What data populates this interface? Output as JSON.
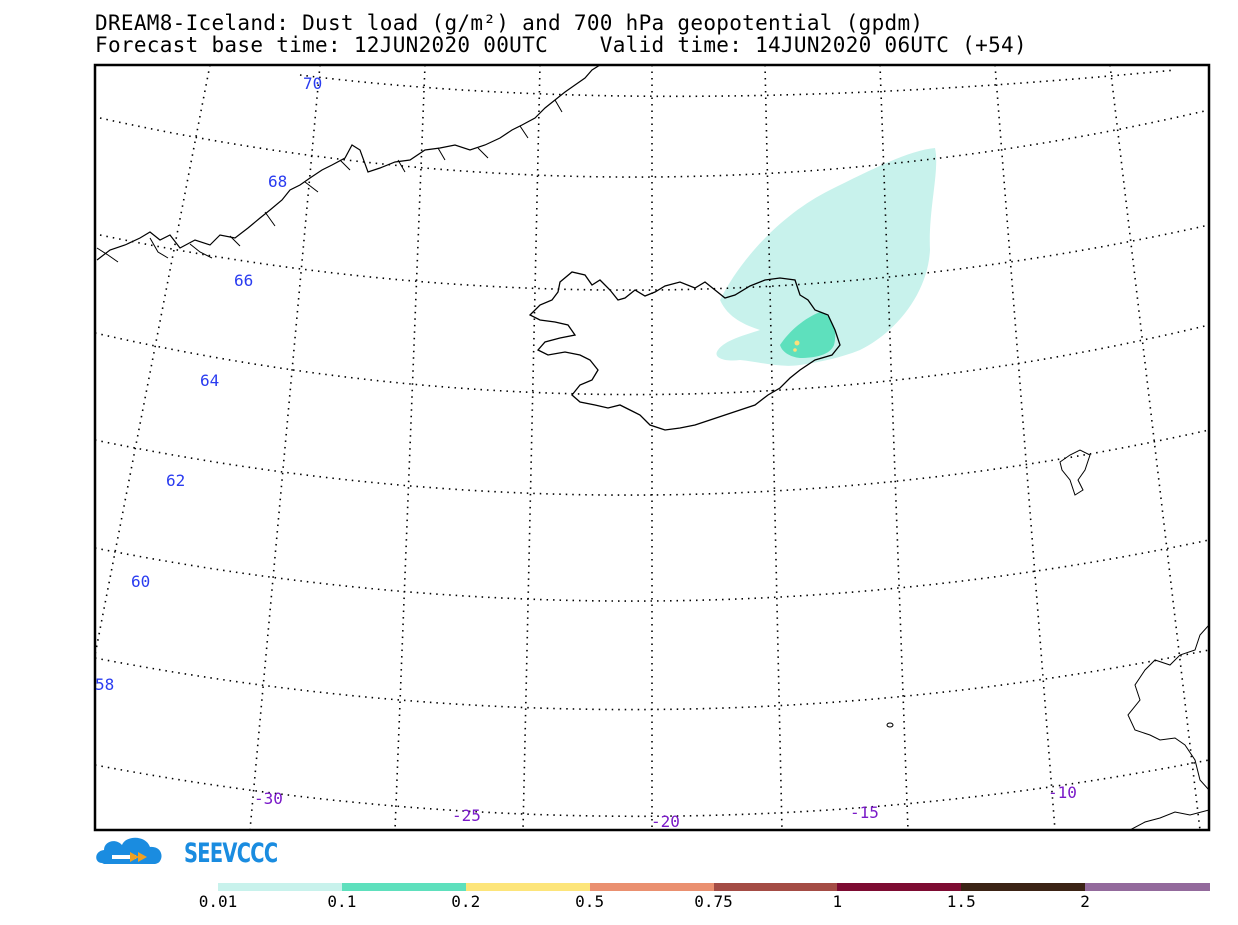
{
  "title": {
    "line1": "DREAM8-Iceland: Dust load (g/m²) and 700 hPa geopotential (gpdm)",
    "line2": "Forecast base time: 12JUN2020 00UTC    Valid time: 14JUN2020 06UTC (+54)"
  },
  "map": {
    "latitude_labels": [
      "70",
      "68",
      "66",
      "64",
      "62",
      "60",
      "58"
    ],
    "longitude_labels": [
      "-30",
      "-25",
      "-20",
      "-15",
      "-10"
    ],
    "dust_colors": {
      "low": "#c8f2ec",
      "mid": "#5ee0bd",
      "high": "#fde07a"
    }
  },
  "logo": {
    "text": "SEEVCCC",
    "color": "#1a8ce0"
  },
  "colorbar": {
    "colors": [
      "#c8f2ec",
      "#5ee0bd",
      "#fde57a",
      "#ea9070",
      "#a44c45",
      "#7d0b32",
      "#3b2315",
      "#936a9c"
    ],
    "labels": [
      "0.01",
      "0.1",
      "0.2",
      "0.5",
      "0.75",
      "1",
      "1.5",
      "2"
    ]
  }
}
